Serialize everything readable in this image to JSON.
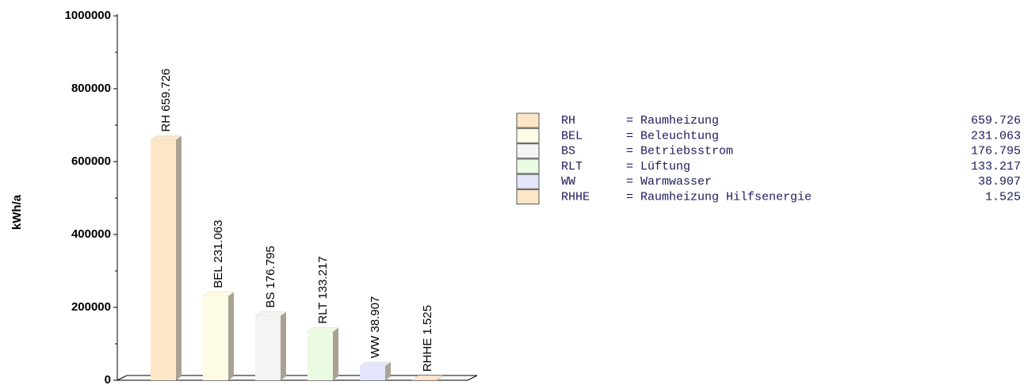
{
  "chart_data": {
    "type": "bar",
    "ylabel": "kWh/a",
    "categories": [
      "RH",
      "BEL",
      "BS",
      "RLT",
      "WW",
      "RHHE"
    ],
    "values": [
      659726,
      231063,
      176795,
      133217,
      38907,
      1525
    ],
    "value_labels": [
      "RH 659.726",
      "BEL 231.063",
      "BS 176.795",
      "RLT 133.217",
      "WW 38.907",
      "RHHE  1.525"
    ],
    "colors": [
      "#fde6c8",
      "#fefce4",
      "#f4f4f4",
      "#eafbe2",
      "#e4e6fb",
      "#fde6c8"
    ],
    "ylim": [
      0,
      1000000
    ],
    "yticks": [
      0,
      200000,
      400000,
      600000,
      800000,
      1000000
    ],
    "legend": [
      {
        "abbr": "RH",
        "description": "= Raumheizung",
        "value": "659.726"
      },
      {
        "abbr": "BEL",
        "description": "= Beleuchtung",
        "value": "231.063"
      },
      {
        "abbr": "BS",
        "description": "= Betriebsstrom",
        "value": "176.795"
      },
      {
        "abbr": "RLT",
        "description": "= Lüftung",
        "value": "133.217"
      },
      {
        "abbr": "WW",
        "description": "= Warmwasser",
        "value": "38.907"
      },
      {
        "abbr": "RHHE",
        "description": "= Raumheizung Hilfsenergie",
        "value": "1.525"
      }
    ]
  }
}
